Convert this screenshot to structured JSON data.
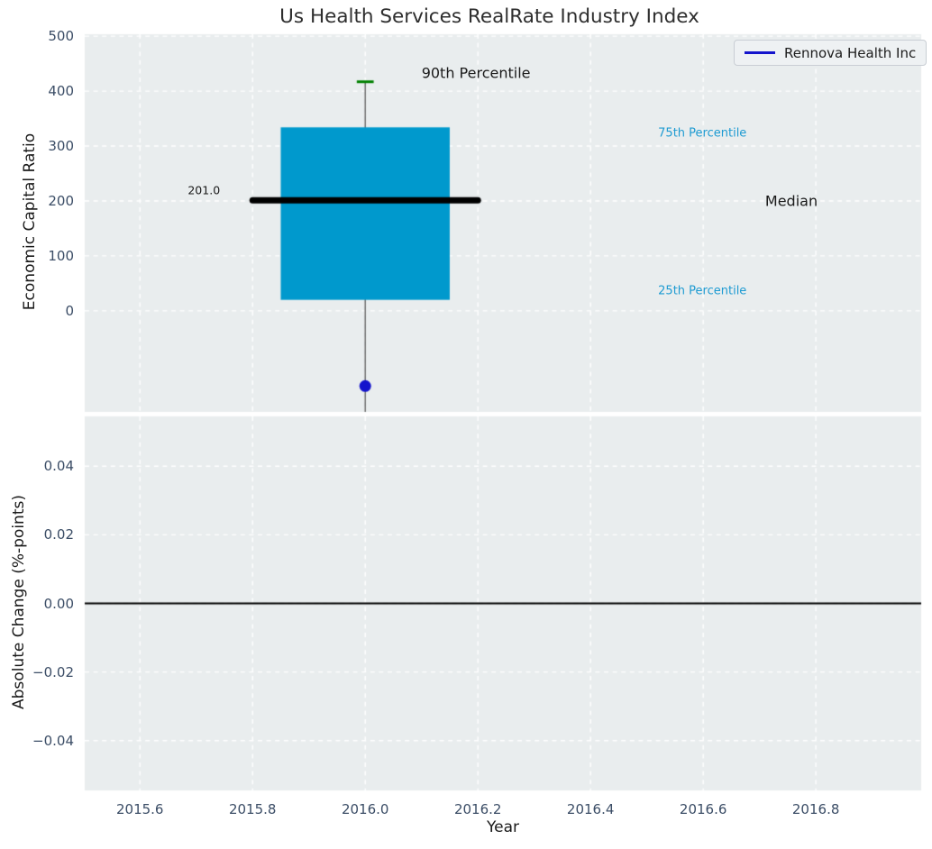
{
  "title": "Us Health Services RealRate Industry Index",
  "legend": {
    "label": "Rennova Health Inc",
    "line_color": "#1414cc"
  },
  "colors": {
    "panel_bg": "#e9edee",
    "grid": "#ffffff",
    "box_fill": "#0099cd",
    "median_line": "#000000",
    "whisker": "#666666",
    "p90_cap": "#008000",
    "company_point": "#1414cc",
    "zero_line": "#000000",
    "tick_text": "#3b4d66",
    "annotation_accent": "#1e9bd2",
    "annotation_text": "#1a1a1a"
  },
  "x_axis": {
    "label": "Year",
    "xlim": [
      2015.502,
      2016.987
    ],
    "tick_values": [
      2015.6,
      2015.8,
      2016.0,
      2016.2,
      2016.4,
      2016.6,
      2016.8
    ],
    "tick_labels": [
      "2015.6",
      "2015.8",
      "2016.0",
      "2016.2",
      "2016.4",
      "2016.6",
      "2016.8"
    ]
  },
  "chart_data": [
    {
      "type": "box",
      "name": "economic-capital-ratio-boxplot",
      "ylabel": "Economic Capital Ratio",
      "ylim": [
        -184,
        503.5
      ],
      "grid": true,
      "ytick_values": [
        500,
        400,
        300,
        200,
        100,
        0
      ],
      "ytick_labels": [
        "500",
        "400",
        "300",
        "200",
        "100",
        "0"
      ],
      "box": {
        "x_center": 2016.0,
        "q1": 20,
        "median": 201,
        "q3": 334,
        "p90": 417,
        "p10_visible": false,
        "whisker_to_axis_bottom": true,
        "box_halfwidth": 0.15,
        "median_halfwidth": 0.2,
        "cap_halfwidth": 0.015
      },
      "company_point": {
        "label": "Rennova Health Inc",
        "x": 2016.0,
        "y": -137
      },
      "annotations": [
        {
          "name": "annotation-90th-percentile",
          "text": "90th Percentile",
          "x": 2016.1,
          "y": 433,
          "color": "#1a1a1a",
          "size": 16
        },
        {
          "name": "annotation-75th-percentile",
          "text": "75th Percentile",
          "x": 2016.52,
          "y": 323,
          "color": "#1e9bd2",
          "size": 13
        },
        {
          "name": "annotation-median",
          "text": "Median",
          "x": 2016.71,
          "y": 200,
          "color": "#1a1a1a",
          "size": 16
        },
        {
          "name": "annotation-25th-percentile",
          "text": "25th Percentile",
          "x": 2016.52,
          "y": 36,
          "color": "#1e9bd2",
          "size": 13
        },
        {
          "name": "annotation-median-value",
          "text": "201.0",
          "x": 2015.685,
          "y": 220,
          "color": "#1a1a1a",
          "size": 12.5
        }
      ]
    },
    {
      "type": "line",
      "name": "absolute-change-panel",
      "ylabel": "Absolute Change (%-points)",
      "ylim": [
        -0.0545,
        0.0545
      ],
      "grid": true,
      "ytick_values": [
        0.04,
        0.02,
        0,
        -0.02,
        -0.04
      ],
      "ytick_labels": [
        "0.04",
        "0.02",
        "0.00",
        "−0.02",
        "−0.04"
      ],
      "zero_line": true,
      "series": []
    }
  ]
}
